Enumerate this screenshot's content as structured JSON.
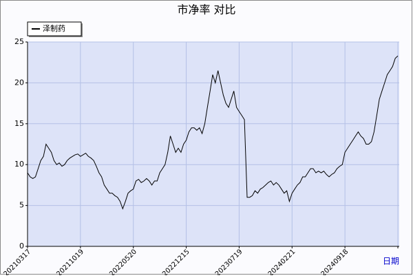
{
  "chart_data": {
    "type": "line",
    "title": "市净率  对比",
    "x_label": "日期",
    "categories": [
      "20210317",
      null,
      null,
      null,
      null,
      null,
      null,
      null,
      null,
      null,
      null,
      null,
      null,
      null,
      null,
      null,
      null,
      null,
      null,
      null,
      "20211019",
      null,
      null,
      null,
      null,
      null,
      null,
      null,
      null,
      null,
      null,
      null,
      null,
      null,
      null,
      null,
      null,
      null,
      null,
      null,
      "20220520",
      null,
      null,
      null,
      null,
      null,
      null,
      null,
      null,
      null,
      null,
      null,
      null,
      null,
      null,
      null,
      null,
      null,
      null,
      null,
      "20221215",
      null,
      null,
      null,
      null,
      null,
      null,
      null,
      null,
      null,
      null,
      null,
      null,
      null,
      null,
      null,
      null,
      null,
      null,
      null,
      "20230719",
      null,
      null,
      null,
      null,
      null,
      null,
      null,
      null,
      null,
      null,
      null,
      null,
      null,
      null,
      null,
      null,
      null,
      null,
      null,
      "20240221",
      null,
      null,
      null,
      null,
      null,
      null,
      null,
      null,
      null,
      null,
      null,
      null,
      null,
      null,
      null,
      null,
      null,
      null,
      null,
      "20240918",
      null,
      null,
      null,
      null,
      null,
      null,
      null,
      null,
      null,
      null,
      null,
      null,
      null,
      null,
      null,
      null,
      null,
      null,
      null,
      null
    ],
    "series": [
      {
        "name": "泽制药",
        "color": "#000000",
        "values": [
          9,
          8.5,
          8.3,
          8.5,
          9.5,
          10.5,
          11,
          12.5,
          12,
          11.5,
          10.5,
          10,
          10.2,
          9.8,
          10,
          10.5,
          10.8,
          11,
          11.2,
          11.3,
          11,
          11.2,
          11.4,
          11,
          10.8,
          10.5,
          9.8,
          9,
          8.5,
          7.5,
          7,
          6.5,
          6.5,
          6.2,
          6,
          5.5,
          4.6,
          5.5,
          6.5,
          6.8,
          7,
          8,
          8.2,
          7.8,
          8,
          8.3,
          8,
          7.5,
          8,
          8,
          9,
          9.5,
          10,
          11.5,
          13.5,
          12.5,
          11.5,
          12,
          11.5,
          12.5,
          13,
          14,
          14.5,
          14.5,
          14.2,
          14.5,
          13.8,
          15,
          17,
          19,
          21,
          20,
          21.5,
          20,
          18.5,
          17.5,
          17,
          18,
          19,
          17,
          16.5,
          16,
          15.5,
          6,
          6,
          6.2,
          6.8,
          6.5,
          7,
          7.2,
          7.5,
          7.8,
          8,
          7.5,
          7.8,
          7.5,
          7,
          6.5,
          6.8,
          5.5,
          6.5,
          7,
          7.5,
          7.8,
          8.5,
          8.5,
          9,
          9.5,
          9.5,
          9,
          9.2,
          9,
          9.2,
          8.8,
          8.5,
          8.8,
          9,
          9.5,
          9.8,
          10,
          11.5,
          12,
          12.5,
          13,
          13.5,
          14,
          13.5,
          13.2,
          12.5,
          12.5,
          12.8,
          14,
          16,
          18,
          19,
          20,
          21,
          21.5,
          22,
          23,
          23.3
        ]
      }
    ],
    "ylim": [
      0,
      25
    ],
    "yticks": [
      0,
      5,
      10,
      15,
      20,
      25
    ],
    "grid": true,
    "legend": "top-left"
  }
}
